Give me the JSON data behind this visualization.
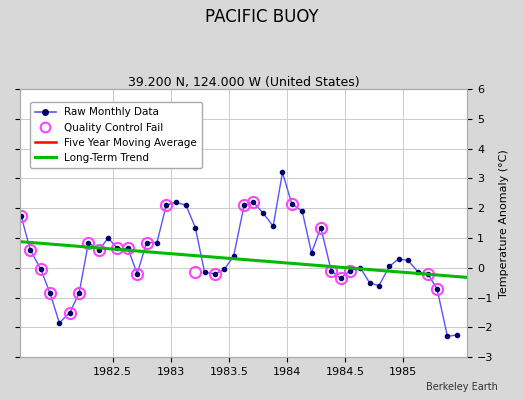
{
  "title": "PACIFIC BUOY",
  "subtitle": "39.200 N, 124.000 W (United States)",
  "credit": "Berkeley Earth",
  "ylabel": "Temperature Anomaly (°C)",
  "ylim": [
    -3,
    6
  ],
  "xlim": [
    1981.7,
    1985.55
  ],
  "yticks": [
    -3,
    -2,
    -1,
    0,
    1,
    2,
    3,
    4,
    5,
    6
  ],
  "xticks": [
    1982.5,
    1983.0,
    1983.5,
    1984.0,
    1984.5,
    1985.0
  ],
  "raw_x": [
    1981.71,
    1981.79,
    1981.88,
    1981.96,
    1982.04,
    1982.13,
    1982.21,
    1982.29,
    1982.38,
    1982.46,
    1982.54,
    1982.63,
    1982.71,
    1982.79,
    1982.88,
    1982.96,
    1983.04,
    1983.13,
    1983.21,
    1983.29,
    1983.38,
    1983.46,
    1983.54,
    1983.63,
    1983.71,
    1983.79,
    1983.88,
    1983.96,
    1984.04,
    1984.13,
    1984.21,
    1984.29,
    1984.38,
    1984.46,
    1984.54,
    1984.63,
    1984.71,
    1984.79,
    1984.88,
    1984.96,
    1985.04,
    1985.13,
    1985.21,
    1985.29,
    1985.38,
    1985.46
  ],
  "raw_y": [
    1.75,
    0.6,
    -0.05,
    -0.85,
    -1.85,
    -1.5,
    -0.85,
    0.85,
    0.6,
    1.0,
    0.65,
    0.65,
    -0.2,
    0.85,
    0.85,
    2.1,
    2.2,
    2.1,
    1.35,
    -0.15,
    -0.2,
    -0.05,
    0.4,
    2.1,
    2.2,
    1.85,
    1.4,
    3.2,
    2.15,
    1.9,
    0.5,
    1.35,
    -0.1,
    -0.35,
    -0.1,
    0.0,
    -0.5,
    -0.6,
    0.05,
    0.3,
    0.25,
    -0.15,
    -0.2,
    -0.7,
    -2.3,
    -2.25
  ],
  "qc_x": [
    1981.71,
    1981.79,
    1981.88,
    1981.96,
    1982.13,
    1982.21,
    1982.29,
    1982.38,
    1982.54,
    1982.63,
    1982.71,
    1982.79,
    1982.96,
    1983.21,
    1983.38,
    1983.63,
    1983.71,
    1984.04,
    1984.29,
    1984.38,
    1984.46,
    1984.54,
    1985.21,
    1985.29
  ],
  "qc_y": [
    1.75,
    0.6,
    -0.05,
    -0.85,
    -1.5,
    -0.85,
    0.85,
    0.6,
    0.65,
    0.65,
    -0.2,
    0.85,
    2.1,
    -0.15,
    -0.2,
    2.1,
    2.2,
    2.15,
    1.35,
    -0.1,
    -0.35,
    -0.1,
    -0.2,
    -0.7
  ],
  "trend_x": [
    1981.7,
    1985.55
  ],
  "trend_y": [
    0.88,
    -0.32
  ],
  "raw_line_color": "#5555ff",
  "raw_dot_color": "#000066",
  "qc_color": "#ff44ff",
  "trend_color": "#00bb00",
  "mavg_color": "#ff0000",
  "bg_color": "#d8d8d8",
  "plot_bg": "#ffffff",
  "grid_color": "#cccccc",
  "title_fontsize": 12,
  "subtitle_fontsize": 9,
  "tick_fontsize": 8,
  "ylabel_fontsize": 8
}
